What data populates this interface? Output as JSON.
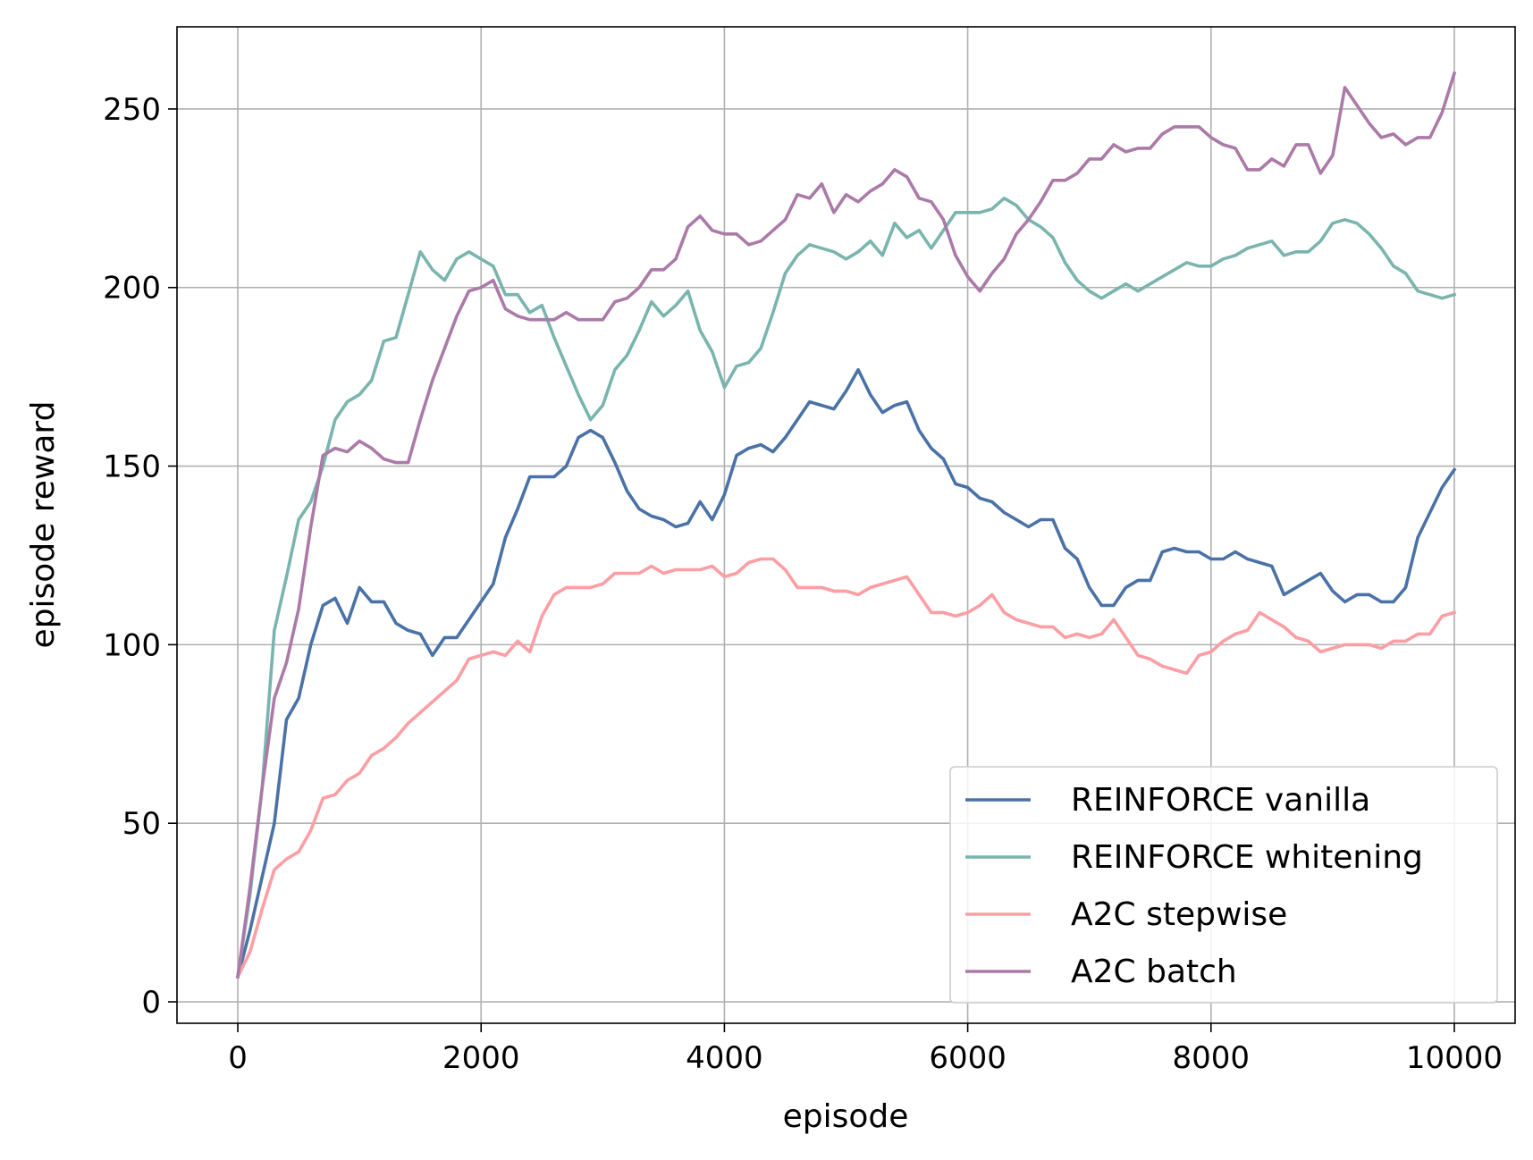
{
  "chart_data": {
    "type": "line",
    "title": "",
    "xlabel": "episode",
    "ylabel": "episode reward",
    "xlim": [
      -500,
      10500
    ],
    "ylim": [
      -6,
      273
    ],
    "xticks": [
      0,
      2000,
      4000,
      6000,
      8000,
      10000
    ],
    "xtick_labels": [
      "0",
      "2000",
      "4000",
      "6000",
      "8000",
      "10000"
    ],
    "yticks": [
      0,
      50,
      100,
      150,
      200,
      250
    ],
    "ytick_labels": [
      "0",
      "50",
      "100",
      "150",
      "200",
      "250"
    ],
    "grid": true,
    "legend_position": "lower-right",
    "x": [
      0,
      100,
      200,
      300,
      400,
      500,
      600,
      700,
      800,
      900,
      1000,
      1100,
      1200,
      1300,
      1400,
      1500,
      1600,
      1700,
      1800,
      1900,
      2000,
      2100,
      2200,
      2300,
      2400,
      2500,
      2600,
      2700,
      2800,
      2900,
      3000,
      3100,
      3200,
      3300,
      3400,
      3500,
      3600,
      3700,
      3800,
      3900,
      4000,
      4100,
      4200,
      4300,
      4400,
      4500,
      4600,
      4700,
      4800,
      4900,
      5000,
      5100,
      5200,
      5300,
      5400,
      5500,
      5600,
      5700,
      5800,
      5900,
      6000,
      6100,
      6200,
      6300,
      6400,
      6500,
      6600,
      6700,
      6800,
      6900,
      7000,
      7100,
      7200,
      7300,
      7400,
      7500,
      7600,
      7700,
      7800,
      7900,
      8000,
      8100,
      8200,
      8300,
      8400,
      8500,
      8600,
      8700,
      8800,
      8900,
      9000,
      9100,
      9200,
      9300,
      9400,
      9500,
      9600,
      9700,
      9800,
      9900,
      10000
    ],
    "series": [
      {
        "name": "REINFORCE vanilla",
        "color": "#4a72a6",
        "values": [
          7,
          20,
          35,
          50,
          79,
          85,
          100,
          111,
          113,
          106,
          116,
          112,
          112,
          106,
          104,
          103,
          97,
          102,
          102,
          107,
          112,
          117,
          130,
          138,
          147,
          147,
          147,
          150,
          158,
          160,
          158,
          151,
          143,
          138,
          136,
          135,
          133,
          134,
          140,
          135,
          142,
          153,
          155,
          156,
          154,
          158,
          163,
          168,
          167,
          166,
          171,
          177,
          170,
          165,
          167,
          168,
          160,
          155,
          152,
          145,
          144,
          141,
          140,
          137,
          135,
          133,
          135,
          135,
          127,
          124,
          116,
          111,
          111,
          116,
          118,
          118,
          126,
          127,
          126,
          126,
          124,
          124,
          126,
          124,
          123,
          122,
          114,
          116,
          118,
          120,
          115,
          112,
          114,
          114,
          112,
          112,
          116,
          130,
          137,
          144,
          149
        ]
      },
      {
        "name": "REINFORCE whitening",
        "color": "#79b5ae",
        "values": [
          7,
          30,
          60,
          104,
          119,
          135,
          140,
          150,
          163,
          168,
          170,
          174,
          185,
          186,
          198,
          210,
          205,
          202,
          208,
          210,
          208,
          206,
          198,
          198,
          193,
          195,
          186,
          178,
          170,
          163,
          167,
          177,
          181,
          188,
          196,
          192,
          195,
          199,
          188,
          182,
          172,
          178,
          179,
          183,
          193,
          204,
          209,
          212,
          211,
          210,
          208,
          210,
          213,
          209,
          218,
          214,
          216,
          211,
          216,
          221,
          221,
          221,
          222,
          225,
          223,
          219,
          217,
          214,
          207,
          202,
          199,
          197,
          199,
          201,
          199,
          201,
          203,
          205,
          207,
          206,
          206,
          208,
          209,
          211,
          212,
          213,
          209,
          210,
          210,
          213,
          218,
          219,
          218,
          215,
          211,
          206,
          204,
          199,
          198,
          197,
          198
        ]
      },
      {
        "name": "A2C stepwise",
        "color": "#fc9ea3",
        "values": [
          7,
          14,
          26,
          37,
          40,
          42,
          48,
          57,
          58,
          62,
          64,
          69,
          71,
          74,
          78,
          81,
          84,
          87,
          90,
          96,
          97,
          98,
          97,
          101,
          98,
          108,
          114,
          116,
          116,
          116,
          117,
          120,
          120,
          120,
          122,
          120,
          121,
          121,
          121,
          122,
          119,
          120,
          123,
          124,
          124,
          121,
          116,
          116,
          116,
          115,
          115,
          114,
          116,
          117,
          118,
          119,
          114,
          109,
          109,
          108,
          109,
          111,
          114,
          109,
          107,
          106,
          105,
          105,
          102,
          103,
          102,
          103,
          107,
          102,
          97,
          96,
          94,
          93,
          92,
          97,
          98,
          101,
          103,
          104,
          109,
          107,
          105,
          102,
          101,
          98,
          99,
          100,
          100,
          100,
          99,
          101,
          101,
          103,
          103,
          108,
          109
        ]
      },
      {
        "name": "A2C batch",
        "color": "#ab7aa8",
        "values": [
          7,
          32,
          60,
          85,
          95,
          110,
          133,
          153,
          155,
          154,
          157,
          155,
          152,
          151,
          151,
          163,
          174,
          183,
          192,
          199,
          200,
          202,
          194,
          192,
          191,
          191,
          191,
          193,
          191,
          191,
          191,
          196,
          197,
          200,
          205,
          205,
          208,
          217,
          220,
          216,
          215,
          215,
          212,
          213,
          216,
          219,
          226,
          225,
          229,
          221,
          226,
          224,
          227,
          229,
          233,
          231,
          225,
          224,
          219,
          209,
          203,
          199,
          204,
          208,
          215,
          219,
          224,
          230,
          230,
          232,
          236,
          236,
          240,
          238,
          239,
          239,
          243,
          245,
          245,
          245,
          242,
          240,
          239,
          233,
          233,
          236,
          234,
          240,
          240,
          232,
          237,
          256,
          251,
          246,
          242,
          243,
          240,
          242,
          242,
          249,
          260
        ]
      }
    ]
  }
}
